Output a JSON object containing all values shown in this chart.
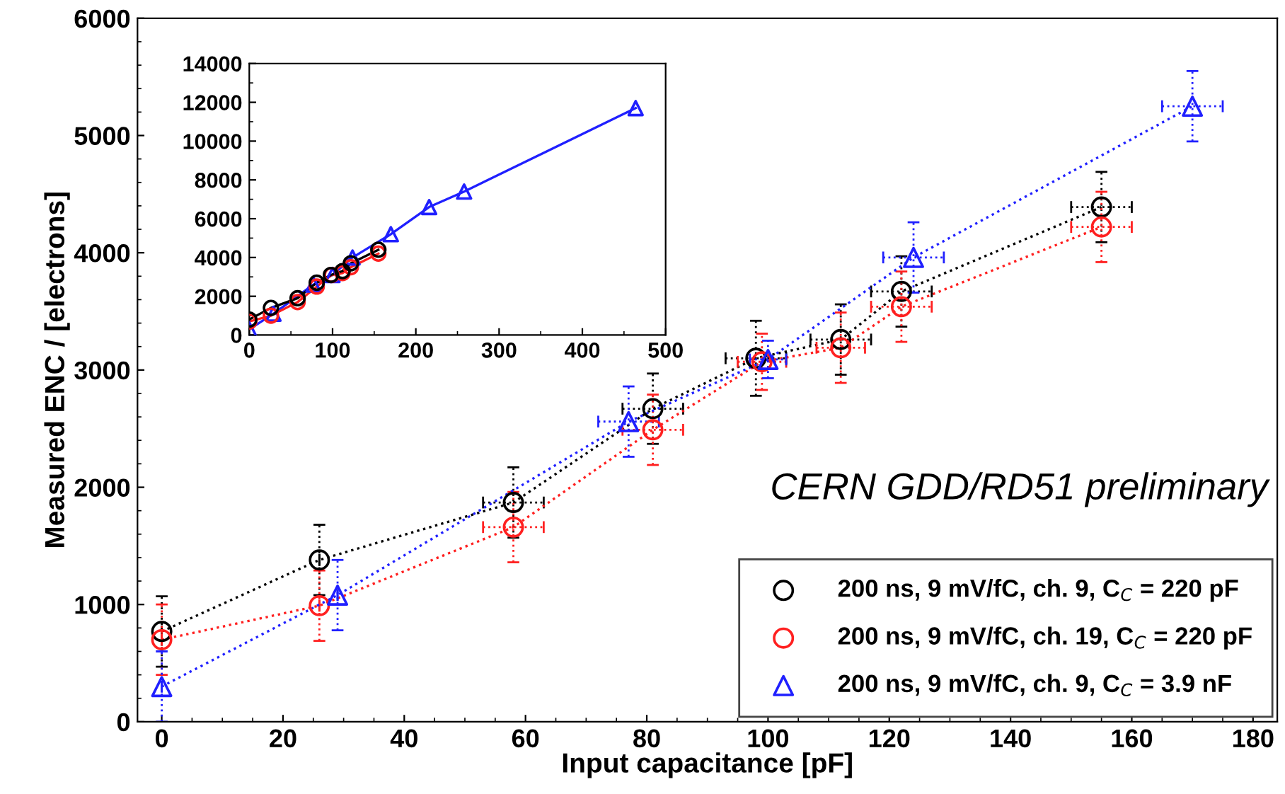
{
  "chart_data": [
    {
      "type": "line",
      "xlabel": "Input capacitance [pF]",
      "ylabel": "Measured ENC / [electrons]",
      "xlim": [
        -4,
        184
      ],
      "ylim": [
        0,
        6000
      ],
      "xticks": [
        0,
        20,
        40,
        60,
        80,
        100,
        120,
        140,
        160,
        180
      ],
      "yticks": [
        0,
        1000,
        2000,
        3000,
        4000,
        5000,
        6000
      ],
      "legend": "bottom right",
      "grid": false,
      "annotations": [
        "CERN GDD/RD51 preliminary"
      ],
      "series": [
        {
          "name": "200 ns, 9 mV/fC, ch. 9, C$_{C}$ = 220 pF",
          "color": "#000000",
          "marker": "circle",
          "line_style": "dotted",
          "x": [
            0,
            26,
            58,
            81,
            98,
            112,
            122,
            155
          ],
          "values": [
            770,
            1380,
            1870,
            2670,
            3100,
            3260,
            3670,
            4390
          ],
          "errors": [
            300,
            300,
            300,
            300,
            320,
            300,
            300,
            300
          ],
          "xerrors": [
            null,
            null,
            5,
            5,
            5,
            5,
            5,
            5
          ]
        },
        {
          "name": "200 ns, 9 mV/fC, ch. 19, C$_{C}$ = 220 pF",
          "color": "#ff2020",
          "marker": "circle",
          "line_style": "dotted",
          "x": [
            0,
            26,
            58,
            81,
            99,
            112,
            122,
            155
          ],
          "values": [
            700,
            990,
            1660,
            2490,
            3070,
            3190,
            3540,
            4220
          ],
          "errors": [
            300,
            300,
            300,
            300,
            240,
            300,
            300,
            300
          ],
          "xerrors": [
            null,
            null,
            5,
            5,
            4,
            4,
            5,
            5
          ]
        },
        {
          "name": "200 ns, 9 mV/fC, ch. 9, C$_{C}$ = 3.9 nF",
          "color": "#2020ff",
          "marker": "triangle",
          "line_style": "dotted",
          "x": [
            0,
            29,
            77,
            100,
            124,
            170
          ],
          "values": [
            300,
            1080,
            2560,
            3090,
            3960,
            5250
          ],
          "errors": [
            300,
            300,
            300,
            160,
            300,
            300
          ],
          "xerrors": [
            null,
            null,
            5,
            3,
            5,
            5
          ]
        }
      ]
    },
    {
      "type": "line",
      "xlim": [
        0,
        500
      ],
      "ylim": [
        0,
        14000
      ],
      "xticks": [
        0,
        100,
        200,
        300,
        400,
        500
      ],
      "yticks": [
        0,
        2000,
        4000,
        6000,
        8000,
        10000,
        12000,
        14000
      ],
      "grid": false,
      "series": [
        {
          "color": "#2020ff",
          "marker": "triangle",
          "line_style": "solid",
          "x": [
            0,
            29,
            77,
            100,
            124,
            170,
            216,
            258,
            464
          ],
          "values": [
            300,
            1100,
            2600,
            3100,
            4000,
            5200,
            6600,
            7400,
            11700
          ]
        },
        {
          "color": "#ff2020",
          "marker": "circle",
          "line_style": "solid",
          "x": [
            0,
            26,
            58,
            81,
            99,
            112,
            122,
            155
          ],
          "values": [
            700,
            1000,
            1700,
            2500,
            3100,
            3200,
            3500,
            4200
          ]
        },
        {
          "color": "#000000",
          "marker": "circle",
          "line_style": "solid",
          "x": [
            0,
            26,
            58,
            81,
            98,
            112,
            122,
            155
          ],
          "values": [
            800,
            1400,
            1900,
            2700,
            3100,
            3300,
            3700,
            4400
          ]
        }
      ]
    }
  ]
}
